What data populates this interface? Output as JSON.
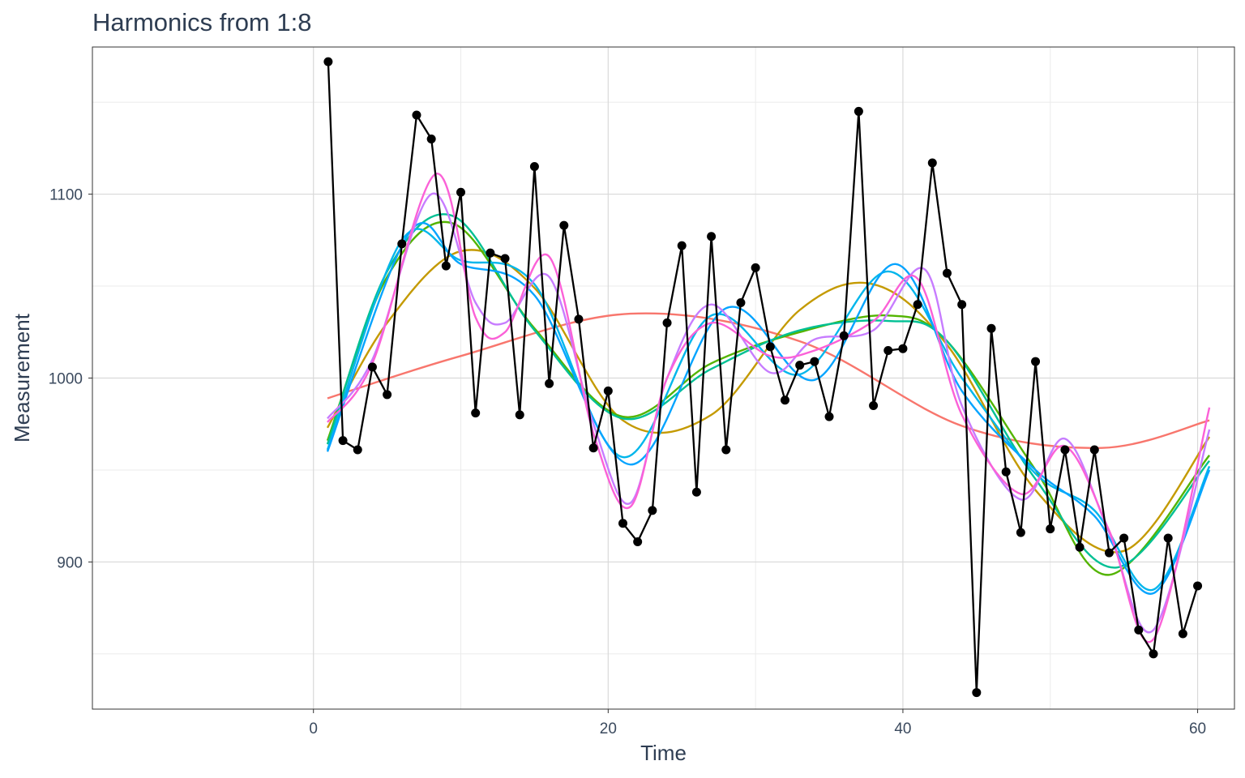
{
  "chart_data": {
    "type": "line",
    "title": "Harmonics from 1:8",
    "xlabel": "Time",
    "ylabel": "Measurement",
    "xlim": [
      -15,
      62.5
    ],
    "ylim": [
      820,
      1180
    ],
    "x_ticks": [
      0,
      20,
      40,
      60
    ],
    "y_ticks": [
      900,
      1000,
      1100
    ],
    "grid": true,
    "observed": {
      "x": [
        1,
        2,
        3,
        4,
        5,
        6,
        7,
        8,
        9,
        10,
        11,
        12,
        13,
        14,
        15,
        16,
        17,
        18,
        19,
        20,
        21,
        22,
        23,
        24,
        25,
        26,
        27,
        28,
        29,
        30,
        31,
        32,
        33,
        34,
        35,
        36,
        37,
        38,
        39,
        40,
        41,
        42,
        43,
        44,
        45,
        46,
        47,
        48,
        49,
        50,
        51,
        52,
        53,
        54,
        55,
        56,
        57,
        58,
        59,
        60
      ],
      "y": [
        1172,
        966,
        961,
        1006,
        991,
        1073,
        1143,
        1130,
        1061,
        1101,
        981,
        1068,
        1065,
        980,
        1115,
        997,
        1083,
        1032,
        962,
        993,
        921,
        911,
        928,
        1030,
        1072,
        938,
        1077,
        961,
        1041,
        1060,
        1017,
        988,
        1007,
        1009,
        979,
        1023,
        1145,
        985,
        1015,
        1016,
        1040,
        1117,
        1057,
        1040,
        829,
        1027,
        949,
        916,
        1009,
        918,
        961,
        908,
        961,
        905,
        913,
        863,
        850,
        913,
        861,
        887
      ],
      "color": "#000000"
    },
    "series": [
      {
        "color": "#f8766d",
        "x": [
          0.95,
          10,
          21.5,
          33,
          44,
          53.5,
          60.8
        ],
        "y": [
          989,
          1012,
          1035,
          1020,
          974,
          962,
          977
        ]
      },
      {
        "color": "#c49a00",
        "x": [
          0.95,
          5,
          10,
          15,
          21,
          27,
          33,
          38,
          43,
          49,
          55,
          60.8
        ],
        "y": [
          973,
          1030,
          1069,
          1049,
          977,
          980,
          1037,
          1051,
          1018,
          939,
          906,
          968
        ]
      },
      {
        "color": "#53b400",
        "x": [
          0.95,
          5,
          9.5,
          15,
          21,
          27,
          33,
          39,
          43,
          49,
          54,
          60.8
        ],
        "y": [
          966,
          1055,
          1084,
          1027,
          979,
          1008,
          1025,
          1034,
          1020,
          950,
          893,
          958
        ]
      },
      {
        "color": "#00c094",
        "x": [
          0.95,
          5,
          9.5,
          15,
          21,
          27,
          33,
          39,
          43,
          49,
          54.5,
          60.8
        ],
        "y": [
          964,
          1058,
          1088,
          1026,
          978,
          1005,
          1026,
          1031,
          1020,
          945,
          897,
          955
        ]
      },
      {
        "color": "#00b6eb",
        "x": [
          0.95,
          6,
          10,
          15,
          21,
          27,
          33,
          39,
          44,
          49,
          53,
          57,
          60.8
        ],
        "y": [
          961,
          1075,
          1064,
          1051,
          957,
          1034,
          1002,
          1058,
          1000,
          948,
          928,
          885,
          952
        ]
      },
      {
        "color": "#06a4ff",
        "x": [
          0.95,
          6.5,
          10,
          15,
          21.5,
          28,
          34,
          39.5,
          44,
          49,
          53,
          57,
          60.8
        ],
        "y": [
          960,
          1079,
          1062,
          1045,
          953,
          1038,
          999,
          1062,
          993,
          950,
          925,
          883,
          950
        ]
      },
      {
        "color": "#c77cff",
        "x": [
          0.95,
          4,
          8,
          11,
          13,
          16,
          19,
          21.5,
          24,
          27,
          31,
          34,
          38,
          41.5,
          44,
          48,
          51,
          54,
          57,
          60.8
        ],
        "y": [
          978,
          1010,
          1100,
          1041,
          1030,
          1055,
          975,
          932,
          1000,
          1040,
          1003,
          1021,
          1026,
          1059,
          985,
          934,
          967,
          916,
          863,
          972
        ]
      },
      {
        "color": "#fb61d7",
        "x": [
          0.95,
          4,
          8.3,
          11,
          13,
          16,
          19,
          21.5,
          24,
          27,
          31,
          34,
          38,
          41,
          44,
          48,
          51,
          54,
          57,
          60.8
        ],
        "y": [
          976,
          1008,
          1111,
          1033,
          1025,
          1066,
          970,
          930,
          1000,
          1030,
          1012,
          1015,
          1031,
          1054,
          980,
          937,
          963,
          917,
          858,
          984
        ]
      }
    ]
  }
}
